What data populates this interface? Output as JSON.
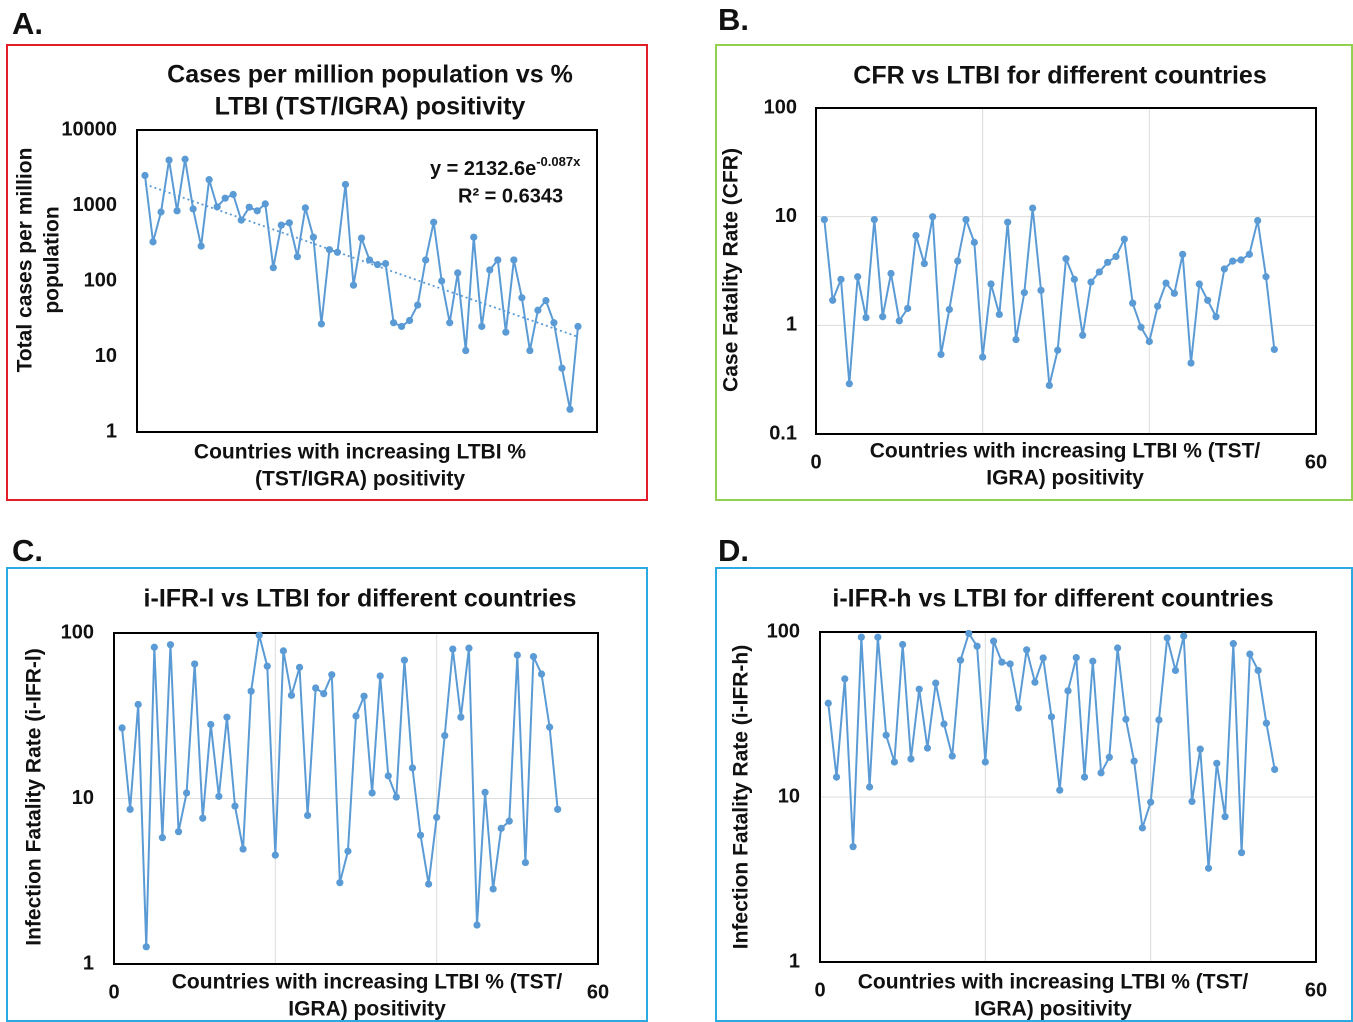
{
  "chart_data": [
    {
      "type": "line",
      "label": "A.",
      "title": [
        "Cases per million population vs %",
        "LTBI (TST/IGRA) positivity"
      ],
      "y_label": [
        "Total cases per million",
        "population"
      ],
      "x_label": [
        "Countries with increasing LTBI %",
        "(TST/IGRA) positivity"
      ],
      "equation": "y = 2132.6e",
      "equation_exponent": "-0.087x",
      "r_squared": "R² = 0.6343",
      "log_y": true,
      "grid": false,
      "trendline": true,
      "color": "#5b9bd5",
      "border_color": "#e41e26",
      "ylim": [
        1,
        10000
      ],
      "yticks": [
        1,
        10,
        100,
        1000,
        10000
      ],
      "x": [
        1,
        2,
        3,
        4,
        5,
        6,
        7,
        8,
        9,
        10,
        11,
        12,
        13,
        14,
        15,
        16,
        17,
        18,
        19,
        20,
        21,
        22,
        23,
        24,
        25,
        26,
        27,
        28,
        29,
        30,
        31,
        32,
        33,
        34,
        35,
        36,
        37,
        38,
        39,
        40,
        41,
        42,
        43,
        44,
        45,
        46,
        47,
        48,
        49,
        50,
        51,
        52,
        53,
        54,
        55
      ],
      "values": [
        2500,
        330,
        820,
        4000,
        850,
        4100,
        900,
        290,
        2200,
        960,
        1250,
        1400,
        640,
        950,
        850,
        1050,
        150,
        550,
        590,
        210,
        930,
        380,
        27,
        260,
        240,
        1900,
        88,
        370,
        190,
        165,
        170,
        28,
        25,
        30,
        48,
        190,
        600,
        100,
        28,
        128,
        12,
        380,
        25,
        140,
        190,
        21,
        190,
        60,
        12,
        41,
        55,
        28,
        7,
        2,
        25
      ]
    },
    {
      "type": "line",
      "label": "B.",
      "title": [
        "CFR vs LTBI for different countries"
      ],
      "y_label": [
        "Case Fatality Rate (CFR)"
      ],
      "x_label": [
        "Countries with increasing LTBI % (TST/",
        "IGRA) positivity"
      ],
      "log_y": true,
      "grid": true,
      "color": "#5b9bd5",
      "border_color": "#92d050",
      "ylim": [
        0.1,
        100
      ],
      "yticks": [
        0.1,
        1,
        10,
        100
      ],
      "xlim": [
        0,
        60
      ],
      "xticks": [
        0,
        60
      ],
      "x_gridlines": [
        20,
        40
      ],
      "x": [
        1,
        2,
        3,
        4,
        5,
        6,
        7,
        8,
        9,
        10,
        11,
        12,
        13,
        14,
        15,
        16,
        17,
        18,
        19,
        20,
        21,
        22,
        23,
        24,
        25,
        26,
        27,
        28,
        29,
        30,
        31,
        32,
        33,
        34,
        35,
        36,
        37,
        38,
        39,
        40,
        41,
        42,
        43,
        44,
        45,
        46,
        47,
        48,
        49,
        50,
        51,
        52,
        53,
        54,
        55
      ],
      "values": [
        9.4,
        1.7,
        2.65,
        0.29,
        2.8,
        1.18,
        9.4,
        1.2,
        3.0,
        1.1,
        1.43,
        6.7,
        3.7,
        10,
        0.54,
        1.4,
        3.9,
        9.4,
        5.8,
        0.51,
        2.4,
        1.26,
        8.9,
        0.74,
        2.0,
        12,
        2.1,
        0.28,
        0.59,
        4.1,
        2.65,
        0.81,
        2.5,
        3.1,
        3.8,
        4.3,
        6.2,
        1.6,
        0.96,
        0.71,
        1.5,
        2.45,
        1.97,
        4.5,
        0.45,
        2.4,
        1.7,
        1.2,
        3.3,
        3.9,
        4.0,
        4.5,
        9.2,
        2.8,
        0.6
      ]
    },
    {
      "type": "line",
      "label": "C.",
      "title": [
        "i-IFR-l vs LTBI for different countries"
      ],
      "y_label": [
        "Infection Fatality Rate (i-IFR-l)"
      ],
      "x_label": [
        "Countries with increasing LTBI % (TST/",
        "IGRA) positivity"
      ],
      "log_y": true,
      "grid": true,
      "color": "#5b9bd5",
      "border_color": "#29abe2",
      "ylim": [
        1,
        100
      ],
      "yticks": [
        1,
        10,
        100
      ],
      "xlim": [
        0,
        60
      ],
      "xticks": [
        0,
        60
      ],
      "x_gridlines": [
        20,
        40
      ],
      "x": [
        1,
        2,
        3,
        4,
        5,
        6,
        7,
        8,
        9,
        10,
        11,
        12,
        13,
        14,
        15,
        16,
        17,
        18,
        19,
        20,
        21,
        22,
        23,
        24,
        25,
        26,
        27,
        28,
        29,
        30,
        31,
        32,
        33,
        34,
        35,
        36,
        37,
        38,
        39,
        40,
        41,
        42,
        43,
        44,
        45,
        46,
        47,
        48,
        49,
        50,
        51,
        52,
        53,
        54,
        55
      ],
      "values": [
        26.7,
        8.6,
        37,
        1.27,
        82,
        5.8,
        85,
        6.3,
        10.8,
        65,
        7.6,
        28,
        10.3,
        31,
        9.0,
        4.95,
        44.5,
        97,
        63,
        4.55,
        78,
        42,
        62,
        7.9,
        46.5,
        43,
        56,
        3.1,
        4.8,
        31.5,
        41.5,
        10.8,
        55,
        13.7,
        10.2,
        68.5,
        15.3,
        6.0,
        3.04,
        7.7,
        24,
        80,
        31,
        81,
        1.72,
        10.9,
        2.84,
        6.6,
        7.3,
        73.5,
        4.1,
        72,
        56.5,
        27,
        8.6
      ]
    },
    {
      "type": "line",
      "label": "D.",
      "title": [
        "i-IFR-h vs LTBI for different countries"
      ],
      "y_label": [
        "Infection Fatality Rate (i-IFR-h)"
      ],
      "x_label": [
        "Countries with increasing LTBI % (TST/",
        "IGRA) positivity"
      ],
      "log_y": true,
      "grid": true,
      "color": "#5b9bd5",
      "border_color": "#29abe2",
      "ylim": [
        1,
        100
      ],
      "yticks": [
        1,
        10,
        100
      ],
      "xlim": [
        0,
        60
      ],
      "xticks": [
        0,
        60
      ],
      "x_gridlines": [
        20,
        40
      ],
      "x": [
        1,
        2,
        3,
        4,
        5,
        6,
        7,
        8,
        9,
        10,
        11,
        12,
        13,
        14,
        15,
        16,
        17,
        18,
        19,
        20,
        21,
        22,
        23,
        24,
        25,
        26,
        27,
        28,
        29,
        30,
        31,
        32,
        33,
        34,
        35,
        36,
        37,
        38,
        39,
        40,
        41,
        42,
        43,
        44,
        45,
        46,
        47,
        48,
        49,
        50,
        51,
        52,
        53,
        54,
        55
      ],
      "values": [
        37,
        13.2,
        52,
        5.0,
        93,
        11.5,
        93,
        23.7,
        16.3,
        84,
        17,
        45,
        19.8,
        49,
        27.7,
        17.7,
        67.5,
        98,
        82,
        16.3,
        88,
        65.6,
        64,
        34.6,
        78,
        49.6,
        69.6,
        30.6,
        11,
        44,
        70,
        13.2,
        66.5,
        14,
        17.4,
        80,
        29.6,
        16.5,
        6.5,
        9.3,
        29.3,
        92,
        58.5,
        94.5,
        9.4,
        19.5,
        3.7,
        16,
        7.6,
        85,
        4.6,
        73.5,
        58.5,
        28,
        14.7
      ]
    }
  ]
}
